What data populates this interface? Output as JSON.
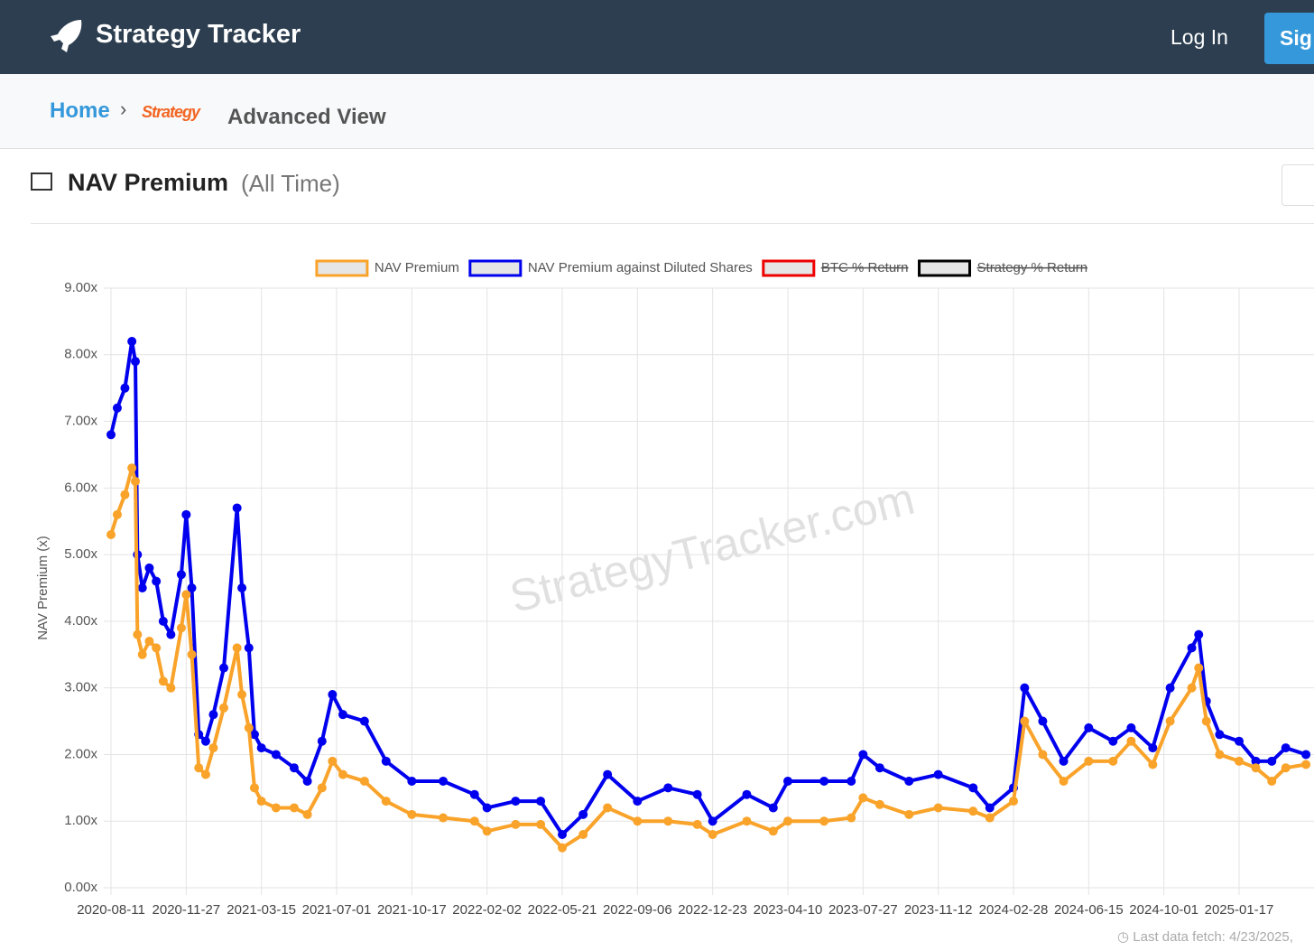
{
  "header": {
    "brand": "Strategy Tracker",
    "login": "Log In",
    "signup": "Sig"
  },
  "breadcrumb": {
    "home": "Home",
    "logo": "Strategy",
    "current": "Advanced View"
  },
  "card": {
    "title": "NAV Premium",
    "range": "(All Time)",
    "watermark": "StrategyTracker.com",
    "footer": "Last data fetch: 4/23/2025,"
  },
  "chart_data": {
    "type": "line",
    "ylabel": "NAV Premium (x)",
    "x": [
      "2020-08-11",
      "2020-08-20",
      "2020-08-31",
      "2020-09-10",
      "2020-09-15",
      "2020-09-18",
      "2020-09-25",
      "2020-10-05",
      "2020-10-15",
      "2020-10-25",
      "2020-11-05",
      "2020-11-20",
      "2020-11-27",
      "2020-12-05",
      "2020-12-15",
      "2020-12-25",
      "2021-01-05",
      "2021-01-20",
      "2021-02-08",
      "2021-02-15",
      "2021-02-25",
      "2021-03-05",
      "2021-03-15",
      "2021-04-05",
      "2021-05-01",
      "2021-05-20",
      "2021-06-10",
      "2021-06-25",
      "2021-07-10",
      "2021-08-10",
      "2021-09-10",
      "2021-10-17",
      "2021-12-01",
      "2022-01-15",
      "2022-02-02",
      "2022-03-15",
      "2022-04-20",
      "2022-05-21",
      "2022-06-20",
      "2022-07-25",
      "2022-09-06",
      "2022-10-20",
      "2022-12-01",
      "2022-12-23",
      "2023-02-10",
      "2023-03-20",
      "2023-04-10",
      "2023-06-01",
      "2023-07-10",
      "2023-07-27",
      "2023-08-20",
      "2023-10-01",
      "2023-11-12",
      "2024-01-01",
      "2024-01-25",
      "2024-02-28",
      "2024-03-15",
      "2024-04-10",
      "2024-05-10",
      "2024-06-15",
      "2024-07-20",
      "2024-08-15",
      "2024-09-15",
      "2024-10-10",
      "2024-11-10",
      "2024-11-20",
      "2024-12-01",
      "2024-12-20",
      "2025-01-17",
      "2025-02-10",
      "2025-03-05",
      "2025-03-25",
      "2025-04-23"
    ],
    "series": [
      {
        "name": "NAV Premium against Diluted Shares",
        "color": "#0000ee",
        "values": [
          6.8,
          7.2,
          7.5,
          8.2,
          7.9,
          5.0,
          4.5,
          4.8,
          4.6,
          4.0,
          3.8,
          4.7,
          5.6,
          4.5,
          2.3,
          2.2,
          2.6,
          3.3,
          5.7,
          4.5,
          3.6,
          2.3,
          2.1,
          2.0,
          1.8,
          1.6,
          2.2,
          2.9,
          2.6,
          2.5,
          1.9,
          1.6,
          1.6,
          1.4,
          1.2,
          1.3,
          1.3,
          0.8,
          1.1,
          1.7,
          1.3,
          1.5,
          1.4,
          1.0,
          1.4,
          1.2,
          1.6,
          1.6,
          1.6,
          2.0,
          1.8,
          1.6,
          1.7,
          1.5,
          1.2,
          1.5,
          3.0,
          2.5,
          1.9,
          2.4,
          2.2,
          2.4,
          2.1,
          3.0,
          3.6,
          3.8,
          2.8,
          2.3,
          2.2,
          1.9,
          1.9,
          2.1,
          2.0
        ]
      },
      {
        "name": "NAV Premium",
        "color": "#f9a32a",
        "values": [
          5.3,
          5.6,
          5.9,
          6.3,
          6.1,
          3.8,
          3.5,
          3.7,
          3.6,
          3.1,
          3.0,
          3.9,
          4.4,
          3.5,
          1.8,
          1.7,
          2.1,
          2.7,
          3.6,
          2.9,
          2.4,
          1.5,
          1.3,
          1.2,
          1.2,
          1.1,
          1.5,
          1.9,
          1.7,
          1.6,
          1.3,
          1.1,
          1.05,
          1.0,
          0.85,
          0.95,
          0.95,
          0.6,
          0.8,
          1.2,
          1.0,
          1.0,
          0.95,
          0.8,
          1.0,
          0.85,
          1.0,
          1.0,
          1.05,
          1.35,
          1.25,
          1.1,
          1.2,
          1.15,
          1.05,
          1.3,
          2.5,
          2.0,
          1.6,
          1.9,
          1.9,
          2.2,
          1.85,
          2.5,
          3.0,
          3.3,
          2.5,
          2.0,
          1.9,
          1.8,
          1.6,
          1.8,
          1.85
        ]
      }
    ],
    "hidden_series": [
      {
        "name": "BTC % Return",
        "color": "#ee0000"
      },
      {
        "name": "Strategy % Return",
        "color": "#000000"
      }
    ],
    "ylim": [
      0,
      9
    ],
    "yticks": [
      {
        "value": 0,
        "label": "0.00x"
      },
      {
        "value": 1,
        "label": "1.00x"
      },
      {
        "value": 2,
        "label": "2.00x"
      },
      {
        "value": 3,
        "label": "3.00x"
      },
      {
        "value": 4,
        "label": "4.00x"
      },
      {
        "value": 5,
        "label": "5.00x"
      },
      {
        "value": 6,
        "label": "6.00x"
      },
      {
        "value": 7,
        "label": "7.00x"
      },
      {
        "value": 8,
        "label": "8.00x"
      },
      {
        "value": 9,
        "label": "9.00x"
      }
    ],
    "xticks": [
      "2020-08-11",
      "2020-11-27",
      "2021-03-15",
      "2021-07-01",
      "2021-10-17",
      "2022-02-02",
      "2022-05-21",
      "2022-09-06",
      "2022-12-23",
      "2023-04-10",
      "2023-07-27",
      "2023-11-12",
      "2024-02-28",
      "2024-06-15",
      "2024-10-01",
      "2025-01-17"
    ],
    "grid": true
  }
}
